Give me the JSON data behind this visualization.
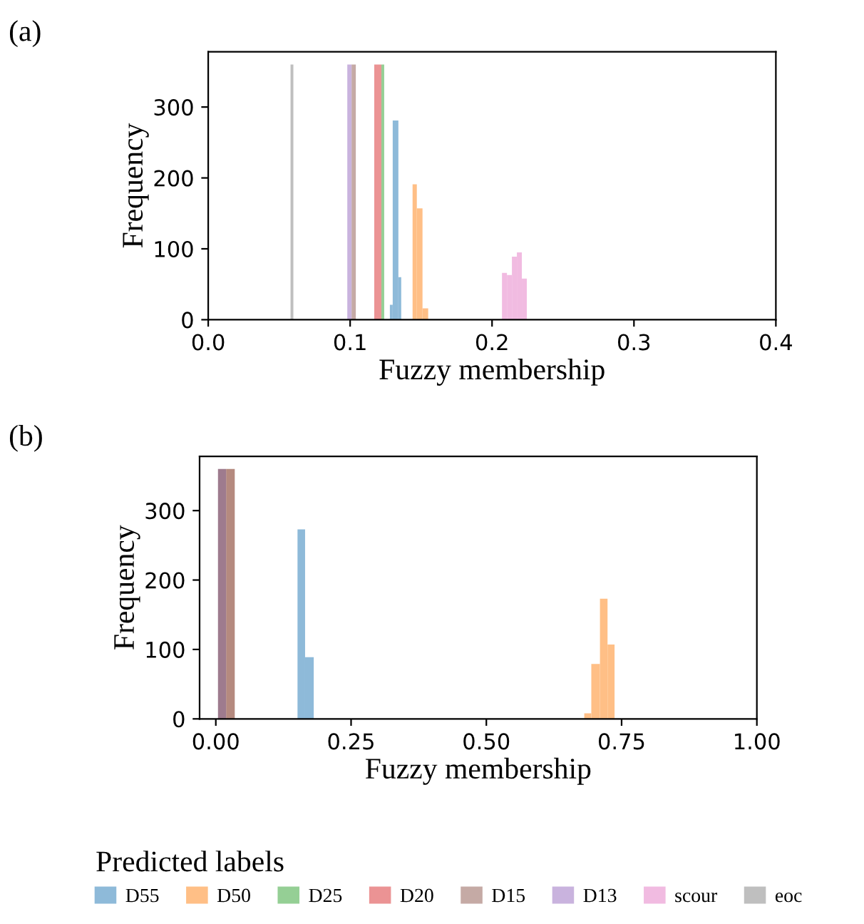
{
  "chart_data": [
    {
      "type": "histogram",
      "title": "(a)",
      "xlabel": "Fuzzy membership",
      "ylabel": "Frequency",
      "xlim": [
        0,
        0.4
      ],
      "ylim": [
        0,
        378
      ],
      "xticks": [
        {
          "value": 0,
          "label": "0.0"
        },
        0.1,
        0.2,
        0.3,
        0.4
      ],
      "yticks": [
        0,
        100,
        200,
        300
      ],
      "grid": false,
      "legend": "bottom",
      "legend_title": "Predicted labels",
      "bins": [
        0.058,
        0.06,
        0.098,
        0.101,
        0.104,
        0.117,
        0.122,
        0.124,
        0.128,
        0.13,
        0.134,
        0.136,
        0.144,
        0.147,
        0.151,
        0.155,
        0.207,
        0.2105,
        0.214,
        0.2175,
        0.221,
        0.2245
      ],
      "series": [
        {
          "name": "D55",
          "color": "#8ebad9",
          "values": [
            null,
            null,
            null,
            null,
            null,
            null,
            null,
            null,
            21,
            281,
            60,
            null,
            null,
            null,
            null,
            null,
            null,
            null,
            null,
            null,
            null
          ]
        },
        {
          "name": "D50",
          "color": "#ffbf86",
          "values": [
            null,
            null,
            null,
            null,
            null,
            null,
            null,
            null,
            null,
            null,
            null,
            null,
            191,
            157,
            16,
            null,
            null,
            null,
            null,
            null,
            null
          ]
        },
        {
          "name": "D25",
          "color": "#95cf95",
          "values": [
            null,
            null,
            null,
            null,
            null,
            null,
            360,
            null,
            null,
            null,
            null,
            null,
            null,
            null,
            null,
            null,
            null,
            null,
            null,
            null,
            null
          ]
        },
        {
          "name": "D20",
          "color": "#eb9394",
          "values": [
            null,
            null,
            null,
            null,
            null,
            360,
            null,
            null,
            null,
            null,
            null,
            null,
            null,
            null,
            null,
            null,
            null,
            null,
            null,
            null,
            null
          ]
        },
        {
          "name": "D15",
          "color": "#c5aaa5",
          "values": [
            null,
            null,
            null,
            360,
            null,
            null,
            null,
            null,
            null,
            null,
            null,
            null,
            null,
            null,
            null,
            null,
            null,
            null,
            null,
            null,
            null
          ]
        },
        {
          "name": "D13",
          "color": "#c9b3de",
          "values": [
            null,
            null,
            360,
            null,
            null,
            null,
            null,
            null,
            null,
            null,
            null,
            null,
            null,
            null,
            null,
            null,
            null,
            null,
            null,
            null,
            null
          ]
        },
        {
          "name": "scour",
          "color": "#f1bbe1",
          "values": [
            null,
            null,
            null,
            null,
            null,
            null,
            null,
            null,
            null,
            null,
            null,
            null,
            null,
            null,
            null,
            null,
            66,
            63,
            89,
            95,
            58
          ]
        },
        {
          "name": "eoc",
          "color": "#bfbfbf",
          "values": [
            360,
            null,
            null,
            null,
            null,
            null,
            null,
            null,
            null,
            null,
            null,
            null,
            null,
            null,
            null,
            null,
            null,
            null,
            null,
            null,
            null
          ]
        }
      ]
    },
    {
      "type": "histogram",
      "title": "(b)",
      "xlabel": "Fuzzy membership",
      "ylabel": "Frequency",
      "xlim": [
        -0.03,
        1.0
      ],
      "ylim": [
        0,
        378
      ],
      "xticks": [
        {
          "value": 0,
          "label": "0.00"
        },
        0.25,
        {
          "value": 0.5,
          "label": "0.50"
        },
        0.75,
        {
          "value": 1,
          "label": "1.00"
        }
      ],
      "yticks": [
        0,
        100,
        200,
        300
      ],
      "grid": false,
      "bins": [
        0.004,
        0.019,
        0.035,
        0.151,
        0.165,
        0.181,
        0.681,
        0.694,
        0.71,
        0.724,
        0.737
      ],
      "series": [
        {
          "color": "#8ebad9",
          "values": [
            null,
            null,
            null,
            273,
            89,
            null,
            null,
            null,
            null,
            null
          ]
        },
        {
          "color": "#ffbf86",
          "values": [
            null,
            null,
            null,
            null,
            null,
            null,
            8,
            79,
            173,
            107
          ]
        },
        {
          "color": "#b58a7f",
          "values": [
            null,
            360,
            null,
            null,
            null,
            null,
            null,
            null,
            null,
            null
          ]
        },
        {
          "color": "#9e7b8e",
          "values": [
            360,
            null,
            null,
            null,
            null,
            null,
            null,
            null,
            null,
            null
          ]
        }
      ]
    }
  ]
}
